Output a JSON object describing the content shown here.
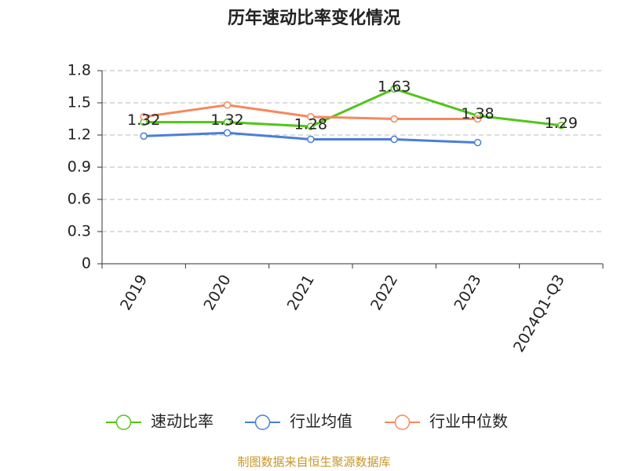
{
  "chart_data": {
    "type": "line",
    "title": "历年速动比率变化情况",
    "categories": [
      "2019",
      "2020",
      "2021",
      "2022",
      "2023",
      "2024Q1-Q3"
    ],
    "series": [
      {
        "name": "速动比率",
        "color": "#52c41a",
        "values": [
          1.32,
          1.32,
          1.28,
          1.63,
          1.38,
          1.29
        ],
        "show_labels": true
      },
      {
        "name": "行业均值",
        "color": "#4a7fd8",
        "values": [
          1.19,
          1.22,
          1.16,
          1.16,
          1.13,
          null
        ],
        "show_labels": false
      },
      {
        "name": "行业中位数",
        "color": "#f4895f",
        "values": [
          1.37,
          1.48,
          1.37,
          1.35,
          1.35,
          null
        ],
        "show_labels": false
      }
    ],
    "ylim": [
      0,
      1.8
    ],
    "yticks": [
      0,
      0.3,
      0.6,
      0.9,
      1.2,
      1.5,
      1.8
    ],
    "grid": true,
    "source": "制图数据来自恒生聚源数据库"
  }
}
